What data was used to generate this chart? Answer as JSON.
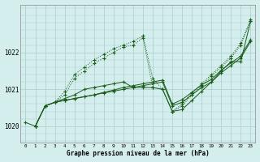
{
  "title": "Graphe pression niveau de la mer (hPa)",
  "bg_color": "#d4eeed",
  "grid_color": "#aacccc",
  "line_color": "#1a5c1a",
  "ylabel_ticks": [
    1020,
    1021,
    1022
  ],
  "xlim": [
    -0.5,
    23.5
  ],
  "ylim": [
    1019.55,
    1023.3
  ],
  "lines": [
    {
      "x": [
        0,
        1,
        2,
        3,
        4,
        5,
        6,
        7,
        8,
        9,
        10,
        11,
        12,
        13,
        14,
        15,
        16,
        17,
        18,
        19,
        20,
        21,
        22,
        23
      ],
      "y": [
        1020.1,
        1020.0,
        1020.55,
        1020.65,
        1020.75,
        1020.85,
        1021.0,
        1021.05,
        1021.1,
        1021.15,
        1021.2,
        1021.05,
        1021.05,
        1021.05,
        1021.0,
        1020.4,
        1020.45,
        1020.7,
        1020.95,
        1021.2,
        1021.5,
        1021.75,
        1021.75,
        1022.85
      ],
      "style": "-"
    },
    {
      "x": [
        1,
        2,
        3,
        4,
        5,
        6,
        7,
        8,
        9,
        10,
        11,
        12,
        13,
        14,
        15,
        16,
        17,
        18,
        19,
        20,
        21,
        22,
        23
      ],
      "y": [
        1020.0,
        1020.55,
        1020.65,
        1020.85,
        1021.3,
        1021.5,
        1021.7,
        1021.85,
        1022.0,
        1022.15,
        1022.2,
        1022.4,
        1021.05,
        1021.0,
        1020.4,
        1020.55,
        1020.85,
        1021.1,
        1021.35,
        1021.6,
        1021.85,
        1022.2,
        1022.85
      ],
      "style": ":"
    },
    {
      "x": [
        1,
        2,
        3,
        4,
        5,
        6,
        7,
        8,
        9,
        10,
        11,
        12,
        13,
        14,
        15,
        16,
        17,
        18,
        19,
        20,
        21,
        22,
        23
      ],
      "y": [
        1020.0,
        1020.55,
        1020.65,
        1020.7,
        1020.75,
        1020.8,
        1020.85,
        1020.9,
        1020.95,
        1021.0,
        1021.05,
        1021.1,
        1021.15,
        1021.2,
        1020.55,
        1020.65,
        1020.85,
        1021.05,
        1021.2,
        1021.45,
        1021.65,
        1021.85,
        1022.3
      ],
      "style": "-"
    },
    {
      "x": [
        1,
        2,
        3,
        4,
        5,
        6,
        7,
        8,
        9,
        10,
        11,
        12,
        13,
        14,
        15,
        16,
        17,
        18,
        19,
        20,
        21,
        22,
        23
      ],
      "y": [
        1020.0,
        1020.55,
        1020.65,
        1020.7,
        1020.75,
        1020.8,
        1020.85,
        1020.92,
        1020.98,
        1021.05,
        1021.1,
        1021.15,
        1021.2,
        1021.25,
        1020.6,
        1020.72,
        1020.92,
        1021.12,
        1021.27,
        1021.52,
        1021.72,
        1021.9,
        1022.35
      ],
      "style": "-"
    },
    {
      "x": [
        1,
        2,
        3,
        4,
        5,
        6,
        7,
        8,
        9,
        10,
        11,
        12,
        13,
        14,
        15,
        16,
        17,
        18,
        19,
        20,
        21,
        22,
        23
      ],
      "y": [
        1020.0,
        1020.55,
        1020.65,
        1020.95,
        1021.4,
        1021.6,
        1021.8,
        1021.95,
        1022.1,
        1022.2,
        1022.3,
        1022.45,
        1021.3,
        1021.0,
        1020.4,
        1020.6,
        1020.9,
        1021.15,
        1021.4,
        1021.65,
        1021.9,
        1022.25,
        1022.9
      ],
      "style": ":"
    }
  ]
}
